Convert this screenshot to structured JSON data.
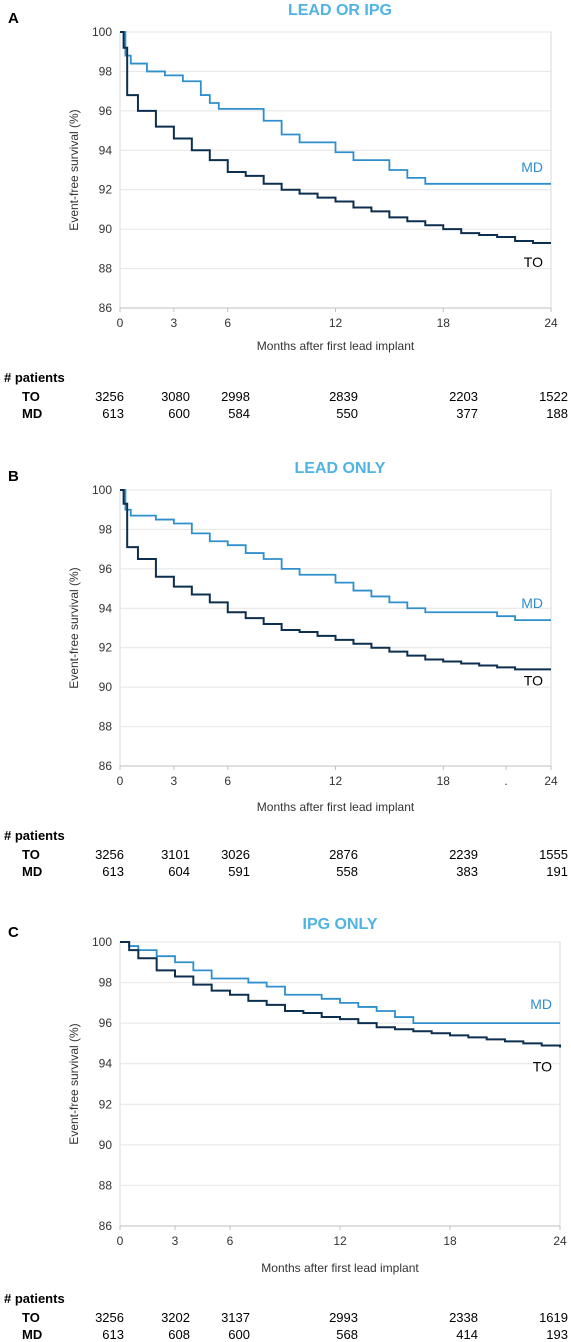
{
  "patients_header": "# patients",
  "chart_data": [
    {
      "type": "line",
      "panel_letter": "A",
      "title": "LEAD OR IPG",
      "xlabel": "Months after first lead implant",
      "ylabel": "Event-free survival (%)",
      "x_ticks": [
        "0",
        "3",
        "6",
        "12",
        "18",
        "24"
      ],
      "y_ticks": [
        "86",
        "88",
        "90",
        "92",
        "94",
        "96",
        "98",
        "100"
      ],
      "xlim": [
        0,
        24
      ],
      "ylim": [
        86,
        100
      ],
      "grid": true,
      "series": [
        {
          "name": "MD",
          "color": "#2e8fcc",
          "points": [
            [
              0,
              100
            ],
            [
              0.3,
              98.8
            ],
            [
              0.6,
              98.4
            ],
            [
              1.5,
              98.0
            ],
            [
              2.5,
              97.8
            ],
            [
              3.5,
              97.5
            ],
            [
              4.5,
              96.8
            ],
            [
              5,
              96.4
            ],
            [
              5.5,
              96.1
            ],
            [
              8,
              95.5
            ],
            [
              9,
              94.8
            ],
            [
              10,
              94.4
            ],
            [
              12,
              93.9
            ],
            [
              13,
              93.5
            ],
            [
              15,
              93.0
            ],
            [
              16,
              92.6
            ],
            [
              17,
              92.3
            ],
            [
              24,
              92.3
            ]
          ]
        },
        {
          "name": "TO",
          "color": "#0d2f4f",
          "points": [
            [
              0,
              100
            ],
            [
              0.2,
              99.2
            ],
            [
              0.4,
              96.8
            ],
            [
              1,
              96.0
            ],
            [
              2,
              95.2
            ],
            [
              3,
              94.6
            ],
            [
              4,
              94.0
            ],
            [
              5,
              93.5
            ],
            [
              6,
              92.9
            ],
            [
              7,
              92.7
            ],
            [
              8,
              92.3
            ],
            [
              9,
              92.0
            ],
            [
              10,
              91.8
            ],
            [
              11,
              91.6
            ],
            [
              12,
              91.4
            ],
            [
              13,
              91.1
            ],
            [
              14,
              90.9
            ],
            [
              15,
              90.6
            ],
            [
              16,
              90.4
            ],
            [
              17,
              90.2
            ],
            [
              18,
              90.0
            ],
            [
              19,
              89.8
            ],
            [
              20,
              89.7
            ],
            [
              21,
              89.6
            ],
            [
              22,
              89.4
            ],
            [
              23,
              89.3
            ],
            [
              24,
              89.3
            ]
          ]
        }
      ],
      "patients": {
        "columns": [
          "0",
          "3",
          "6",
          "12",
          "18",
          "24"
        ],
        "rows": [
          {
            "label": "TO",
            "values": [
              "3256",
              "3080",
              "2998",
              "2839",
              "2203",
              "1522"
            ]
          },
          {
            "label": "MD",
            "values": [
              "613",
              "600",
              "584",
              "550",
              "377",
              "188"
            ]
          }
        ]
      }
    },
    {
      "type": "line",
      "panel_letter": "B",
      "title": "LEAD ONLY",
      "xlabel": "Months after first lead implant",
      "ylabel": "Event-free survival (%)",
      "x_ticks": [
        "0",
        "3",
        "6",
        "12",
        "18",
        ".",
        "24"
      ],
      "y_ticks": [
        "86",
        "88",
        "90",
        "92",
        "94",
        "96",
        "98",
        "100"
      ],
      "xlim": [
        0,
        24
      ],
      "ylim": [
        86,
        100
      ],
      "grid": true,
      "series": [
        {
          "name": "MD",
          "color": "#2e8fcc",
          "points": [
            [
              0,
              100
            ],
            [
              0.3,
              99.0
            ],
            [
              0.6,
              98.7
            ],
            [
              2,
              98.5
            ],
            [
              3,
              98.3
            ],
            [
              4,
              97.8
            ],
            [
              5,
              97.4
            ],
            [
              6,
              97.2
            ],
            [
              7,
              96.8
            ],
            [
              8,
              96.5
            ],
            [
              9,
              96.0
            ],
            [
              10,
              95.7
            ],
            [
              12,
              95.3
            ],
            [
              13,
              94.9
            ],
            [
              14,
              94.6
            ],
            [
              15,
              94.3
            ],
            [
              16,
              94.0
            ],
            [
              17,
              93.8
            ],
            [
              21,
              93.6
            ],
            [
              22,
              93.4
            ],
            [
              24,
              93.4
            ]
          ]
        },
        {
          "name": "TO",
          "color": "#0d2f4f",
          "points": [
            [
              0,
              100
            ],
            [
              0.2,
              99.3
            ],
            [
              0.4,
              97.1
            ],
            [
              1,
              96.5
            ],
            [
              2,
              95.6
            ],
            [
              3,
              95.1
            ],
            [
              4,
              94.7
            ],
            [
              5,
              94.3
            ],
            [
              6,
              93.8
            ],
            [
              7,
              93.5
            ],
            [
              8,
              93.2
            ],
            [
              9,
              92.9
            ],
            [
              10,
              92.8
            ],
            [
              11,
              92.6
            ],
            [
              12,
              92.4
            ],
            [
              13,
              92.2
            ],
            [
              14,
              92.0
            ],
            [
              15,
              91.8
            ],
            [
              16,
              91.6
            ],
            [
              17,
              91.4
            ],
            [
              18,
              91.3
            ],
            [
              19,
              91.2
            ],
            [
              20,
              91.1
            ],
            [
              21,
              91.0
            ],
            [
              22,
              90.9
            ],
            [
              24,
              90.9
            ]
          ]
        }
      ],
      "patients": {
        "columns": [
          "0",
          "3",
          "6",
          "12",
          "18",
          "24"
        ],
        "rows": [
          {
            "label": "TO",
            "values": [
              "3256",
              "3101",
              "3026",
              "2876",
              "2239",
              "1555"
            ]
          },
          {
            "label": "MD",
            "values": [
              "613",
              "604",
              "591",
              "558",
              "383",
              "191"
            ]
          }
        ]
      }
    },
    {
      "type": "line",
      "panel_letter": "C",
      "title": "IPG ONLY",
      "xlabel": "Months after first lead implant",
      "ylabel": "Event-free survival (%)",
      "x_ticks": [
        "0",
        "3",
        "6",
        "12",
        "18",
        "24"
      ],
      "y_ticks": [
        "86",
        "88",
        "90",
        "92",
        "94",
        "96",
        "98",
        "100"
      ],
      "xlim": [
        0,
        24
      ],
      "ylim": [
        86,
        100
      ],
      "grid": true,
      "series": [
        {
          "name": "MD",
          "color": "#2e8fcc",
          "points": [
            [
              0,
              100
            ],
            [
              0.5,
              99.8
            ],
            [
              1,
              99.6
            ],
            [
              2,
              99.3
            ],
            [
              3,
              99.0
            ],
            [
              4,
              98.6
            ],
            [
              5,
              98.2
            ],
            [
              7,
              98.0
            ],
            [
              8,
              97.8
            ],
            [
              9,
              97.4
            ],
            [
              11,
              97.2
            ],
            [
              12,
              97.0
            ],
            [
              13,
              96.8
            ],
            [
              14,
              96.6
            ],
            [
              15,
              96.3
            ],
            [
              16,
              96.0
            ],
            [
              24,
              96.0
            ]
          ]
        },
        {
          "name": "TO",
          "color": "#0d2f4f",
          "points": [
            [
              0,
              100
            ],
            [
              0.5,
              99.6
            ],
            [
              1,
              99.2
            ],
            [
              2,
              98.6
            ],
            [
              3,
              98.3
            ],
            [
              4,
              97.9
            ],
            [
              5,
              97.6
            ],
            [
              6,
              97.4
            ],
            [
              7,
              97.1
            ],
            [
              8,
              96.9
            ],
            [
              9,
              96.6
            ],
            [
              10,
              96.5
            ],
            [
              11,
              96.3
            ],
            [
              12,
              96.2
            ],
            [
              13,
              96.0
            ],
            [
              14,
              95.8
            ],
            [
              15,
              95.7
            ],
            [
              16,
              95.6
            ],
            [
              17,
              95.5
            ],
            [
              18,
              95.4
            ],
            [
              19,
              95.3
            ],
            [
              20,
              95.2
            ],
            [
              21,
              95.1
            ],
            [
              22,
              95.0
            ],
            [
              23,
              94.9
            ],
            [
              24,
              94.8
            ]
          ]
        }
      ],
      "patients": {
        "columns": [
          "0",
          "3",
          "6",
          "12",
          "18",
          "24"
        ],
        "rows": [
          {
            "label": "TO",
            "values": [
              "3256",
              "3202",
              "3137",
              "2993",
              "2338",
              "1619"
            ]
          },
          {
            "label": "MD",
            "values": [
              "613",
              "608",
              "600",
              "568",
              "414",
              "193"
            ]
          }
        ]
      }
    }
  ]
}
